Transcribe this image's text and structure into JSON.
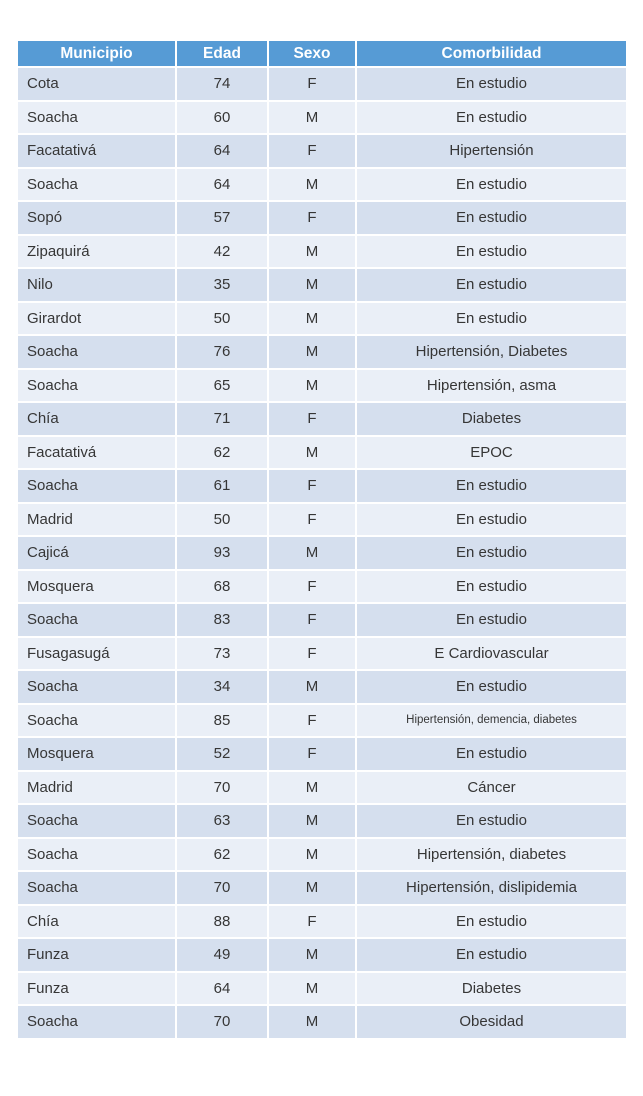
{
  "colors": {
    "header_bg": "#569BD5",
    "header_text": "#FFFFFF",
    "row_odd_bg": "#D5DFEE",
    "row_even_bg": "#EAEFF7",
    "body_text": "#363636",
    "page_bg": "#FFFFFF"
  },
  "chart_data": {
    "type": "table",
    "title": "",
    "columns": [
      "Municipio",
      "Edad",
      "Sexo",
      "Comorbilidad"
    ],
    "column_keys": [
      "municipio",
      "edad",
      "sexo",
      "comorbilidad"
    ],
    "rows": [
      [
        "Cota",
        "74",
        "F",
        "En estudio"
      ],
      [
        "Soacha",
        "60",
        "M",
        "En estudio"
      ],
      [
        "Facatativá",
        "64",
        "F",
        "Hipertensión"
      ],
      [
        "Soacha",
        "64",
        "M",
        "En estudio"
      ],
      [
        "Sopó",
        "57",
        "F",
        "En estudio"
      ],
      [
        "Zipaquirá",
        "42",
        "M",
        "En estudio"
      ],
      [
        "Nilo",
        "35",
        "M",
        "En estudio"
      ],
      [
        "Girardot",
        "50",
        "M",
        "En estudio"
      ],
      [
        "Soacha",
        "76",
        "M",
        "Hipertensión, Diabetes"
      ],
      [
        "Soacha",
        "65",
        "M",
        "Hipertensión, asma"
      ],
      [
        "Chía",
        "71",
        "F",
        "Diabetes"
      ],
      [
        "Facatativá",
        "62",
        "M",
        "EPOC"
      ],
      [
        "Soacha",
        "61",
        "F",
        "En estudio"
      ],
      [
        "Madrid",
        "50",
        "F",
        "En estudio"
      ],
      [
        "Cajicá",
        "93",
        "M",
        "En estudio"
      ],
      [
        "Mosquera",
        "68",
        "F",
        "En estudio"
      ],
      [
        "Soacha",
        "83",
        "F",
        "En estudio"
      ],
      [
        "Fusagasugá",
        "73",
        "F",
        "E Cardiovascular"
      ],
      [
        "Soacha",
        "34",
        "M",
        "En estudio"
      ],
      [
        "Soacha",
        "85",
        "F",
        "Hipertensión, demencia, diabetes"
      ],
      [
        "Mosquera",
        "52",
        "F",
        "En estudio"
      ],
      [
        "Madrid",
        "70",
        "M",
        "Cáncer"
      ],
      [
        "Soacha",
        "63",
        "M",
        "En estudio"
      ],
      [
        "Soacha",
        "62",
        "M",
        "Hipertensión, diabetes"
      ],
      [
        "Soacha",
        "70",
        "M",
        "Hipertensión, dislipidemia"
      ],
      [
        "Chía",
        "88",
        "F",
        "En estudio"
      ],
      [
        "Funza",
        "49",
        "M",
        "En estudio"
      ],
      [
        "Funza",
        "64",
        "M",
        "Diabetes"
      ],
      [
        "Soacha",
        "70",
        "M",
        "Obesidad"
      ]
    ],
    "layout": {
      "banded_rows": true,
      "header_position": "top",
      "municipio_align": "left",
      "other_columns_align": "center"
    }
  }
}
